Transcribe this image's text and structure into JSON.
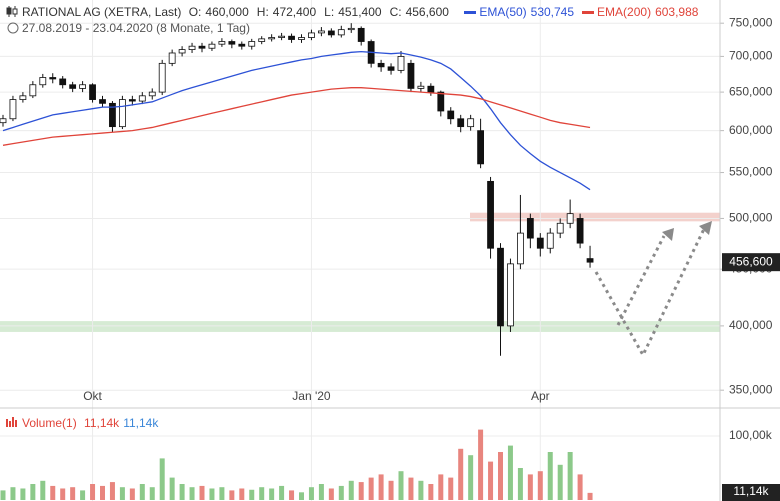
{
  "chart_data": [
    {
      "type": "candlestick",
      "title": "RATIONAL AG (XETRA, Last)",
      "subtitle": "27.08.2019 - 23.04.2020   (8 Monate, 1 Tag)",
      "quote": [
        {
          "key": "O:",
          "value": 460000,
          "label": "460,000"
        },
        {
          "key": "H:",
          "value": 472400,
          "label": "472,400"
        },
        {
          "key": "L:",
          "value": 451400,
          "label": "451,400"
        },
        {
          "key": "C:",
          "value": 456600,
          "label": "456,600"
        }
      ],
      "current": {
        "value": 456600,
        "label": "456,600"
      },
      "log": true,
      "grid": true,
      "ylim": [
        338000,
        787000
      ],
      "yticks": [
        {
          "value": 350000,
          "label": "350,000"
        },
        {
          "value": 400000,
          "label": "400,000"
        },
        {
          "value": 450000,
          "label": "450,000"
        },
        {
          "value": 500000,
          "label": "500,000"
        },
        {
          "value": 550000,
          "label": "550,000"
        },
        {
          "value": 600000,
          "label": "600,000"
        },
        {
          "value": 650000,
          "label": "650,000"
        },
        {
          "value": 700000,
          "label": "700,000"
        },
        {
          "value": 750000,
          "label": "750,000"
        }
      ],
      "categories": [
        null,
        null,
        null,
        null,
        null,
        null,
        null,
        null,
        null,
        "Okt",
        null,
        null,
        null,
        null,
        null,
        null,
        null,
        null,
        null,
        null,
        null,
        null,
        null,
        null,
        null,
        null,
        null,
        null,
        null,
        null,
        null,
        "Jan '20",
        null,
        null,
        null,
        null,
        null,
        null,
        null,
        null,
        null,
        null,
        null,
        null,
        null,
        null,
        null,
        null,
        null,
        null,
        null,
        null,
        null,
        null,
        "Apr",
        null,
        null,
        null,
        null,
        null
      ],
      "open": [
        610000,
        615000,
        640000,
        645000,
        660000,
        670000,
        668000,
        660000,
        655000,
        660000,
        640000,
        635000,
        605000,
        640000,
        638000,
        645000,
        650000,
        690000,
        705000,
        710000,
        715000,
        712000,
        718000,
        722000,
        718000,
        715000,
        722000,
        726000,
        728000,
        730000,
        725000,
        728000,
        735000,
        738000,
        732000,
        740000,
        742000,
        722000,
        690000,
        685000,
        680000,
        690000,
        655000,
        658000,
        650000,
        625000,
        615000,
        605000,
        600000,
        540000,
        470000,
        400000,
        455000,
        500000,
        480000,
        470000,
        485000,
        495000,
        500000,
        460000
      ],
      "high": [
        620000,
        645000,
        650000,
        665000,
        675000,
        676000,
        672000,
        664000,
        665000,
        662000,
        645000,
        638000,
        645000,
        645000,
        650000,
        655000,
        695000,
        710000,
        715000,
        720000,
        720000,
        722000,
        727000,
        725000,
        722000,
        726000,
        730000,
        733000,
        735000,
        734000,
        733000,
        740000,
        744000,
        742000,
        746000,
        750000,
        745000,
        725000,
        695000,
        690000,
        708000,
        695000,
        664000,
        662000,
        652000,
        630000,
        620000,
        620000,
        615000,
        545000,
        475000,
        460000,
        525000,
        505000,
        485000,
        490000,
        500000,
        520000,
        505000,
        472400
      ],
      "low": [
        605000,
        612000,
        636000,
        642000,
        656000,
        662000,
        655000,
        650000,
        650000,
        636000,
        630000,
        598000,
        602000,
        632000,
        634000,
        640000,
        646000,
        686000,
        700000,
        705000,
        706000,
        708000,
        714000,
        712000,
        710000,
        710000,
        718000,
        722000,
        724000,
        720000,
        720000,
        724000,
        730000,
        728000,
        728000,
        735000,
        716000,
        684000,
        678000,
        674000,
        676000,
        650000,
        650000,
        645000,
        618000,
        608000,
        598000,
        600000,
        555000,
        460000,
        376000,
        395000,
        450000,
        470000,
        462000,
        465000,
        480000,
        490000,
        470000,
        451400
      ],
      "close": [
        615000,
        640000,
        645000,
        660000,
        670000,
        668000,
        660000,
        655000,
        660000,
        640000,
        635000,
        605000,
        640000,
        638000,
        645000,
        650000,
        690000,
        705000,
        710000,
        715000,
        712000,
        718000,
        722000,
        718000,
        715000,
        722000,
        726000,
        728000,
        730000,
        725000,
        728000,
        735000,
        738000,
        732000,
        740000,
        742000,
        722000,
        690000,
        685000,
        680000,
        700000,
        655000,
        658000,
        650000,
        625000,
        615000,
        605000,
        615000,
        560000,
        470000,
        400000,
        455000,
        485000,
        480000,
        470000,
        485000,
        495000,
        505000,
        475000,
        456600
      ],
      "up_color": "#ffffff",
      "down_color": "#111111",
      "zones": [
        {
          "from": 497000,
          "to": 506000,
          "color": "#f1c9c3"
        },
        {
          "from": 395000,
          "to": 404000,
          "color": "#cfe8cc"
        }
      ],
      "lines": [
        {
          "name": "EMA(50)",
          "color": "#2d52d6",
          "last": {
            "value": 530745,
            "label": "530,745"
          },
          "values": [
            600000,
            604000,
            608000,
            612000,
            616000,
            620000,
            622000,
            624000,
            626000,
            628000,
            630000,
            630000,
            631000,
            633000,
            635000,
            637000,
            642000,
            647000,
            652000,
            656000,
            660000,
            664000,
            668000,
            672000,
            676000,
            680000,
            683000,
            686000,
            689000,
            692000,
            695000,
            697000,
            700000,
            702000,
            704000,
            706000,
            707000,
            706000,
            705000,
            704000,
            705000,
            702000,
            699000,
            695000,
            690000,
            682000,
            670000,
            658000,
            645000,
            628000,
            610000,
            595000,
            582000,
            572000,
            563000,
            556000,
            550000,
            544000,
            538000,
            530745
          ]
        },
        {
          "name": "EMA(200)",
          "color": "#e0443a",
          "last": {
            "value": 603988,
            "label": "603,988"
          },
          "values": [
            582000,
            584000,
            586000,
            588000,
            590000,
            592000,
            593000,
            594000,
            595000,
            596000,
            597000,
            598000,
            599000,
            600000,
            602000,
            604000,
            607000,
            610000,
            613000,
            616000,
            619000,
            622000,
            625000,
            628000,
            631000,
            634000,
            637000,
            640000,
            643000,
            646000,
            648000,
            650000,
            652000,
            654000,
            655000,
            656000,
            656000,
            655000,
            654000,
            653000,
            652000,
            651000,
            650000,
            649000,
            648000,
            647000,
            646000,
            644000,
            641000,
            637000,
            633000,
            629000,
            625000,
            621000,
            617000,
            613000,
            610000,
            608000,
            606000,
            603988
          ]
        }
      ]
    },
    {
      "type": "volume",
      "title": "Volume(1)",
      "legend_values": [
        {
          "value": 11140,
          "label": "11,14k",
          "color": "#e0443a"
        },
        {
          "value": 11140,
          "label": "11,14k",
          "color": "#3a86d8"
        }
      ],
      "current": {
        "value": 11140,
        "label": "11,14k"
      },
      "ylim": [
        0,
        137500
      ],
      "yticks": [
        {
          "value": 100000,
          "label": "100,00k"
        }
      ],
      "up_color": "#8cc98a",
      "down_color": "#e8857e",
      "values": [
        15000,
        20000,
        18000,
        25000,
        30000,
        22000,
        18000,
        20000,
        15000,
        25000,
        22000,
        28000,
        20000,
        18000,
        25000,
        20000,
        65000,
        35000,
        25000,
        20000,
        22000,
        18000,
        20000,
        15000,
        18000,
        16000,
        20000,
        18000,
        22000,
        15000,
        12000,
        20000,
        25000,
        18000,
        22000,
        30000,
        28000,
        35000,
        40000,
        30000,
        45000,
        35000,
        30000,
        25000,
        40000,
        35000,
        80000,
        70000,
        110000,
        60000,
        75000,
        85000,
        50000,
        40000,
        45000,
        75000,
        55000,
        75000,
        40000,
        11140
      ]
    }
  ]
}
